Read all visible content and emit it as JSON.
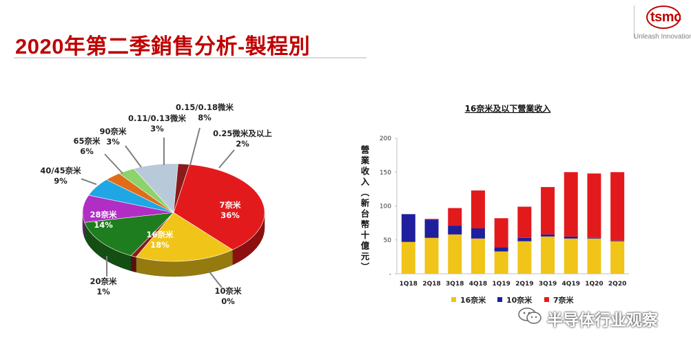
{
  "slide": {
    "title": "2020年第二季銷售分析-製程別",
    "logo_text": "tsmc",
    "tagline": "Unleash Innovation",
    "watermark": "半导体行业观察"
  },
  "colors": {
    "title": "#c00000",
    "nm7": "#e31a1c",
    "nm10": "#1f1f9e",
    "nm16": "#f0c419",
    "nm20": "#8b1a1a",
    "nm28": "#1e7d1e",
    "nm40_45": "#b12ec4",
    "nm65": "#1ea7e4",
    "nm90": "#e06c1a",
    "um011_013": "#8bd36a",
    "um015_018": "#b8c9d9",
    "um025": "#8b1a1a"
  },
  "chart_data": [
    {
      "type": "pie",
      "title": "",
      "slices": [
        {
          "name": "7奈米",
          "percent_label": "36%",
          "value": 36,
          "color": "#e31a1c"
        },
        {
          "name": "10奈米",
          "percent_label": "0%",
          "value": 0,
          "color": "#1f1f9e"
        },
        {
          "name": "16奈米",
          "percent_label": "18%",
          "value": 18,
          "color": "#f0c419"
        },
        {
          "name": "20奈米",
          "percent_label": "1%",
          "value": 1,
          "color": "#8b1a1a"
        },
        {
          "name": "28奈米",
          "percent_label": "14%",
          "value": 14,
          "color": "#1e7d1e"
        },
        {
          "name": "40/45奈米",
          "percent_label": "9%",
          "value": 9,
          "color": "#b12ec4"
        },
        {
          "name": "65奈米",
          "percent_label": "6%",
          "value": 6,
          "color": "#1ea7e4"
        },
        {
          "name": "90奈米",
          "percent_label": "3%",
          "value": 3,
          "color": "#e06c1a"
        },
        {
          "name": "0.11/0.13微米",
          "percent_label": "3%",
          "value": 3,
          "color": "#8bd36a"
        },
        {
          "name": "0.15/0.18微米",
          "percent_label": "8%",
          "value": 8,
          "color": "#b8c9d9"
        },
        {
          "name": "0.25微米及以上",
          "percent_label": "2%",
          "value": 2,
          "color": "#8b1a1a"
        }
      ]
    },
    {
      "type": "bar",
      "stacked": true,
      "title": "16奈米及以下營業收入",
      "ylabel": "營業收入(新台幣十億元)",
      "xlabel": "",
      "ylim": [
        0,
        200
      ],
      "yticks": [
        "-",
        "50",
        "100",
        "150",
        "200"
      ],
      "categories": [
        "1Q18",
        "2Q18",
        "3Q18",
        "4Q18",
        "1Q19",
        "2Q19",
        "3Q19",
        "4Q19",
        "1Q20",
        "2Q20"
      ],
      "series": [
        {
          "name": "16奈米",
          "color": "#f0c419",
          "values": [
            47,
            53,
            58,
            52,
            33,
            48,
            55,
            52,
            52,
            48
          ]
        },
        {
          "name": "10奈米",
          "color": "#1f1f9e",
          "values": [
            41,
            27,
            13,
            15,
            6,
            5,
            3,
            3,
            1,
            1
          ]
        },
        {
          "name": "7奈米",
          "color": "#e31a1c",
          "values": [
            0,
            1,
            26,
            56,
            43,
            46,
            70,
            95,
            95,
            101
          ]
        }
      ],
      "legend_position": "bottom"
    }
  ]
}
